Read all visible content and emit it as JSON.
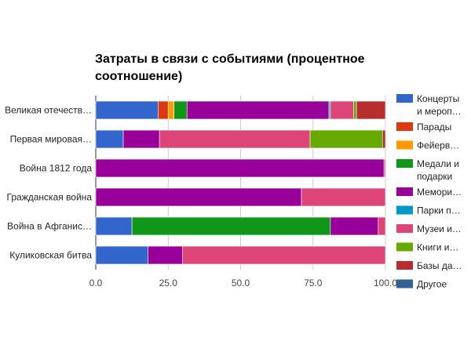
{
  "chart_data": {
    "type": "bar",
    "orientation": "horizontal",
    "stacked": true,
    "title": "Затраты в связи с событиями (процентное соотношение)",
    "title_lines": [
      "Затраты в связи с событиями (процентное",
      "соотношение)"
    ],
    "xlabel": "",
    "ylabel": "",
    "xlim": [
      0,
      100
    ],
    "xticks": [
      "0.0",
      "25.0",
      "50.0",
      "75.0",
      "100.0"
    ],
    "grid": true,
    "legend_position": "right",
    "categories": [
      "Великая отечеств…",
      "Первая мировая…",
      "Война 1812 года",
      "Гражданская война",
      "Война в Афганис…",
      "Куликовская битва"
    ],
    "series": [
      {
        "name": "Концерты и мероп…",
        "legend_lines": [
          "Концерты",
          "и мероп…"
        ],
        "color": "#3366cc",
        "values": [
          21.5,
          9.5,
          0,
          0,
          12.5,
          18
        ]
      },
      {
        "name": "Парады",
        "legend_lines": [
          "Парады"
        ],
        "color": "#dc3912",
        "values": [
          3.5,
          0,
          0,
          0,
          0,
          0
        ]
      },
      {
        "name": "Фейерв…",
        "legend_lines": [
          "Фейерв…"
        ],
        "color": "#ff9900",
        "values": [
          2,
          0,
          0,
          0,
          0,
          0
        ]
      },
      {
        "name": "Медали и подарки",
        "legend_lines": [
          "Медали и",
          "подарки"
        ],
        "color": "#109618",
        "values": [
          4.5,
          0,
          0,
          0,
          68.5,
          0
        ]
      },
      {
        "name": "Мемори…",
        "legend_lines": [
          "Мемори…"
        ],
        "color": "#990099",
        "values": [
          49,
          12.5,
          99.5,
          71,
          16.5,
          12
        ]
      },
      {
        "name": "Парки п…",
        "legend_lines": [
          "Парки п…"
        ],
        "color": "#0099c6",
        "values": [
          0.5,
          0,
          0,
          0,
          0,
          0
        ]
      },
      {
        "name": "Музеи и…",
        "legend_lines": [
          "Музеи и…"
        ],
        "color": "#dd4477",
        "values": [
          8,
          52,
          0.5,
          29,
          2.5,
          70
        ]
      },
      {
        "name": "Книги и…",
        "legend_lines": [
          "Книги и…"
        ],
        "color": "#66aa00",
        "values": [
          1,
          25,
          0,
          0,
          0,
          0
        ]
      },
      {
        "name": "Базы да…",
        "legend_lines": [
          "Базы да…"
        ],
        "color": "#b82e2e",
        "values": [
          10,
          1,
          0,
          0,
          0,
          0
        ]
      },
      {
        "name": "Другое",
        "legend_lines": [
          "Другое"
        ],
        "color": "#316395",
        "values": [
          0,
          0,
          0,
          0,
          0,
          0
        ]
      }
    ]
  }
}
